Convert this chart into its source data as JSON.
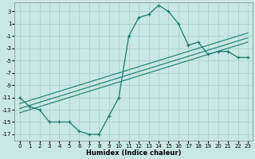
{
  "x": [
    0,
    1,
    2,
    3,
    4,
    5,
    6,
    7,
    8,
    9,
    10,
    11,
    12,
    13,
    14,
    15,
    16,
    17,
    18,
    19,
    20,
    21,
    22,
    23
  ],
  "y_main": [
    -11,
    -12.5,
    -13,
    -15,
    -15,
    -15,
    -16.5,
    -17,
    -17,
    -14,
    -11,
    -1,
    2,
    2.5,
    4,
    3,
    1,
    -2.5,
    -2,
    -4,
    -3.5,
    -3.5,
    -4.5,
    -4.5
  ],
  "y_line1": [
    -12.0,
    -11.5,
    -11.0,
    -10.5,
    -10.0,
    -9.5,
    -9.0,
    -8.5,
    -8.0,
    -7.5,
    -7.0,
    -6.5,
    -6.0,
    -5.5,
    -5.0,
    -4.5,
    -4.0,
    -3.5,
    -3.0,
    -2.5,
    -2.0,
    -1.5,
    -1.0,
    -0.5
  ],
  "y_line2": [
    -12.8,
    -12.3,
    -11.8,
    -11.3,
    -10.8,
    -10.3,
    -9.8,
    -9.3,
    -8.8,
    -8.3,
    -7.8,
    -7.3,
    -6.8,
    -6.3,
    -5.8,
    -5.3,
    -4.8,
    -4.3,
    -3.8,
    -3.3,
    -2.8,
    -2.3,
    -1.8,
    -1.3
  ],
  "y_line3": [
    -13.5,
    -13.0,
    -12.5,
    -12.0,
    -11.5,
    -11.0,
    -10.5,
    -10.0,
    -9.5,
    -9.0,
    -8.5,
    -8.0,
    -7.5,
    -7.0,
    -6.5,
    -6.0,
    -5.5,
    -5.0,
    -4.5,
    -4.0,
    -3.5,
    -3.0,
    -2.5,
    -2.0
  ],
  "color": "#1a7a6e",
  "bg_color": "#c8e8e4",
  "grid_color": "#a8ceca",
  "xlabel": "Humidex (Indice chaleur)",
  "xlim": [
    -0.5,
    23.5
  ],
  "ylim": [
    -18,
    4.5
  ],
  "yticks": [
    3,
    1,
    -1,
    -3,
    -5,
    -7,
    -9,
    -11,
    -13,
    -15,
    -17
  ],
  "xticks": [
    0,
    1,
    2,
    3,
    4,
    5,
    6,
    7,
    8,
    9,
    10,
    11,
    12,
    13,
    14,
    15,
    16,
    17,
    18,
    19,
    20,
    21,
    22,
    23
  ]
}
